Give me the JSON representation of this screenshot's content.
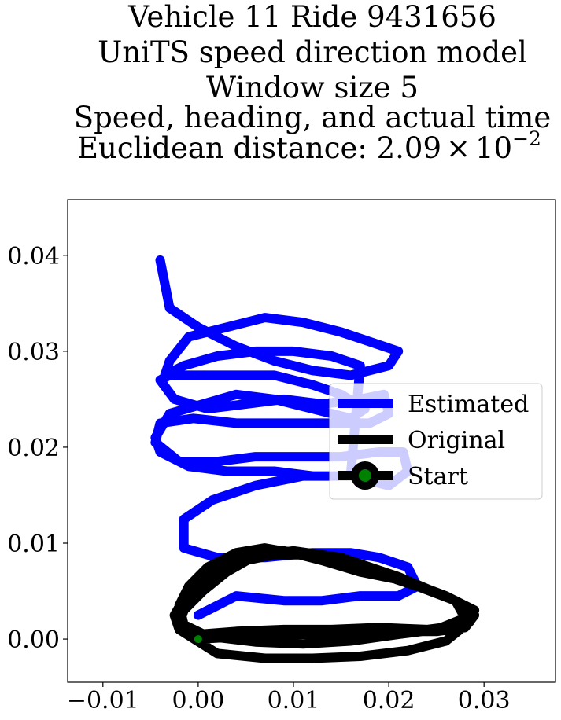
{
  "chart_data": {
    "type": "line",
    "title_lines": [
      "Vehicle 11 Ride 9431656",
      "UniTS speed direction model",
      "Window size 5",
      "Speed, heading, and actual time"
    ],
    "title_last_prefix": "Euclidean distance: 2.09",
    "title_last_times": "×",
    "title_last_base": "10",
    "title_last_exp": "−2",
    "xlabel": "",
    "ylabel": "",
    "xlim": [
      -0.0137,
      0.0375
    ],
    "ylim": [
      -0.0045,
      0.0458
    ],
    "xticks": [
      -0.01,
      0.0,
      0.01,
      0.02,
      0.03
    ],
    "xtick_labels": [
      "−0.01",
      "0.00",
      "0.01",
      "0.02",
      "0.03"
    ],
    "yticks": [
      0.0,
      0.01,
      0.02,
      0.03,
      0.04
    ],
    "ytick_labels": [
      "0.00",
      "0.01",
      "0.02",
      "0.03",
      "0.04"
    ],
    "legend_position": "center-right",
    "series": [
      {
        "name": "Estimated",
        "color": "#0000ff",
        "x": [
          0.0,
          0.004,
          0.009,
          0.013,
          0.017,
          0.021,
          0.023,
          0.022,
          0.019,
          0.016,
          0.012,
          0.007,
          0.002,
          -0.0015,
          -0.0015,
          0.0015,
          0.006,
          0.011,
          0.016,
          0.02,
          0.022,
          0.0215,
          0.019,
          0.015,
          0.011,
          0.006,
          0.002,
          -0.002,
          -0.0045,
          -0.004,
          -0.0005,
          0.004,
          0.009,
          0.014,
          0.018,
          0.02,
          0.0195,
          0.017,
          0.013,
          0.009,
          0.005,
          0.001,
          -0.0025,
          -0.004,
          -0.003,
          0.0,
          0.004,
          0.008,
          0.012,
          0.015,
          0.0175,
          0.016,
          0.012,
          0.008,
          0.004,
          0.0005,
          -0.003,
          -0.0045,
          -0.004,
          -0.001,
          0.003,
          0.008,
          0.012,
          0.016,
          0.017,
          0.014,
          0.01,
          0.006,
          0.002,
          -0.0015,
          -0.0035,
          -0.003,
          -0.001,
          0.003,
          0.007,
          0.011,
          0.015,
          0.018,
          0.021,
          0.02,
          0.016,
          0.012,
          0.008,
          0.004,
          0.0,
          -0.003,
          -0.004
        ],
        "y": [
          0.0025,
          0.0045,
          0.004,
          0.004,
          0.0045,
          0.0045,
          0.0055,
          0.0075,
          0.0085,
          0.009,
          0.009,
          0.0085,
          0.0085,
          0.0095,
          0.0125,
          0.0145,
          0.016,
          0.017,
          0.017,
          0.016,
          0.0175,
          0.0195,
          0.0195,
          0.019,
          0.019,
          0.019,
          0.0185,
          0.0185,
          0.0205,
          0.0225,
          0.023,
          0.0225,
          0.0225,
          0.0225,
          0.0225,
          0.0235,
          0.0255,
          0.025,
          0.0245,
          0.025,
          0.0245,
          0.024,
          0.025,
          0.027,
          0.0275,
          0.0275,
          0.0275,
          0.0275,
          0.0265,
          0.0255,
          0.024,
          0.023,
          0.024,
          0.025,
          0.0255,
          0.0245,
          0.0235,
          0.021,
          0.0195,
          0.018,
          0.0175,
          0.0175,
          0.017,
          0.017,
          0.0285,
          0.0295,
          0.03,
          0.03,
          0.0295,
          0.0285,
          0.0275,
          0.029,
          0.0315,
          0.0325,
          0.0335,
          0.033,
          0.032,
          0.031,
          0.03,
          0.0285,
          0.0275,
          0.028,
          0.029,
          0.0305,
          0.0325,
          0.0345,
          0.0395
        ]
      },
      {
        "name": "Original",
        "color": "#000000",
        "x": [
          0.0,
          0.005,
          0.01,
          0.015,
          0.02,
          0.025,
          0.028,
          0.029,
          0.027,
          0.023,
          0.019,
          0.015,
          0.011,
          0.008,
          0.005,
          0.003,
          0.001,
          -0.001,
          -0.002,
          -0.002,
          0.0,
          0.004,
          0.009,
          0.014,
          0.019,
          0.024,
          0.028,
          0.029,
          0.026,
          0.022,
          0.017,
          0.013,
          0.009,
          0.006,
          0.003,
          0.001,
          -0.0015,
          -0.0025,
          -0.002,
          0.002,
          0.007,
          0.012,
          0.017,
          0.022,
          0.026,
          0.0285,
          0.027,
          0.022,
          0.016,
          0.011,
          0.007,
          0.004,
          0.001,
          -0.001,
          -0.002,
          -0.0015,
          0.001,
          0.006,
          0.011,
          0.016,
          0.021,
          0.025,
          0.028,
          0.027,
          0.021,
          0.015,
          0.01,
          0.006,
          0.003,
          0.0005,
          -0.0015,
          -0.002,
          -0.0005,
          0.0
        ],
        "y": [
          0.0,
          0.0003,
          0.0005,
          0.0005,
          0.0008,
          0.0008,
          0.0012,
          0.0025,
          0.004,
          0.0055,
          0.0068,
          0.008,
          0.0088,
          0.0088,
          0.0082,
          0.007,
          0.0055,
          0.004,
          0.0025,
          0.001,
          0.0005,
          0.0008,
          0.001,
          0.001,
          0.0012,
          0.001,
          0.0015,
          0.003,
          0.0045,
          0.006,
          0.007,
          0.0082,
          0.0092,
          0.009,
          0.008,
          0.0062,
          0.0042,
          0.0025,
          0.001,
          -0.0015,
          -0.002,
          -0.002,
          -0.0018,
          -0.0012,
          -0.0002,
          0.0018,
          0.004,
          0.006,
          0.0075,
          0.0088,
          0.0095,
          0.009,
          0.0075,
          0.0055,
          0.0035,
          0.0015,
          0.0003,
          -0.0003,
          -0.0005,
          -0.0002,
          0.0005,
          0.001,
          0.0022,
          0.004,
          0.0065,
          0.0085,
          0.0092,
          0.0087,
          0.007,
          0.005,
          0.003,
          0.0015,
          0.0003,
          0.0
        ]
      },
      {
        "name": "Start",
        "color": "#008000",
        "marker_edge": "#000000",
        "x": [
          0.0
        ],
        "y": [
          0.0
        ]
      }
    ]
  }
}
